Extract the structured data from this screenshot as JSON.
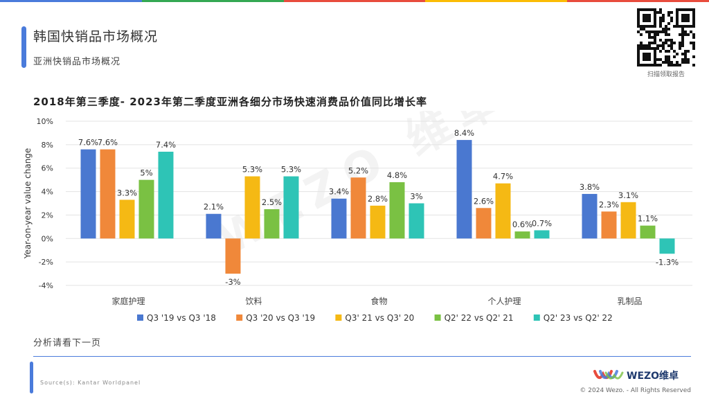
{
  "topbar_colors": [
    "#4A7BDB",
    "#34A853",
    "#E84C3D",
    "#FBBC04",
    "#E84C3D"
  ],
  "header": {
    "title": "韩国快销品市场概况",
    "subtitle": "亚洲快销品市场概况"
  },
  "qr": {
    "caption": "扫描领取报告"
  },
  "chart_data": {
    "type": "bar",
    "title": "2018年第三季度- 2023年第二季度亚洲各细分市场快速消费品价值同比增长率",
    "ylabel": "Year-on-year value change",
    "xlabel": "",
    "ylim": [
      -4,
      10
    ],
    "yticks": [
      -4,
      -2,
      0,
      2,
      4,
      6,
      8,
      10
    ],
    "ytick_labels": [
      "-4%",
      "-2%",
      "0%",
      "2%",
      "4%",
      "6%",
      "8%",
      "10%"
    ],
    "grid": true,
    "legend_position": "bottom",
    "categories": [
      "家庭护理",
      "饮料",
      "食物",
      "个人护理",
      "乳制品"
    ],
    "series": [
      {
        "name": "Q3 '19 vs Q3 '18",
        "color": "#4A78D0",
        "values": [
          7.6,
          2.1,
          3.4,
          8.4,
          3.8
        ],
        "labels": [
          "7.6%",
          "2.1%",
          "3.4%",
          "8.4%",
          "3.8%"
        ]
      },
      {
        "name": "Q3 '20 vs Q3 '19",
        "color": "#F0883A",
        "values": [
          7.6,
          -3,
          5.2,
          2.6,
          2.3
        ],
        "labels": [
          "7.6%",
          "-3%",
          "5.2%",
          "2.6%",
          "2.3%"
        ]
      },
      {
        "name": "Q3' 21 vs Q3' 20",
        "color": "#F5B914",
        "values": [
          3.3,
          5.3,
          2.8,
          4.7,
          3.1
        ],
        "labels": [
          "3.3%",
          "5.3%",
          "2.8%",
          "4.7%",
          "3.1%"
        ]
      },
      {
        "name": "Q2' 22 vs Q2' 21",
        "color": "#7AC143",
        "values": [
          5,
          2.5,
          4.8,
          0.6,
          1.1
        ],
        "labels": [
          "5%",
          "2.5%",
          "4.8%",
          "0.6%",
          "1.1%"
        ]
      },
      {
        "name": "Q2' 23 vs Q2' 22",
        "color": "#2EC4B6",
        "values": [
          7.4,
          5.3,
          3,
          0.7,
          -1.3
        ],
        "labels": [
          "7.4%",
          "5.3%",
          "3%",
          "0.7%",
          "-1.3%"
        ]
      }
    ]
  },
  "watermark": "WEZO 维卓",
  "note": "分析请看下一页",
  "source": "Source(s): Kantar Worldpanel",
  "logo": {
    "text": "WEZO维卓"
  },
  "copyright": "© 2024 Wezo. - All Rights Reserved"
}
